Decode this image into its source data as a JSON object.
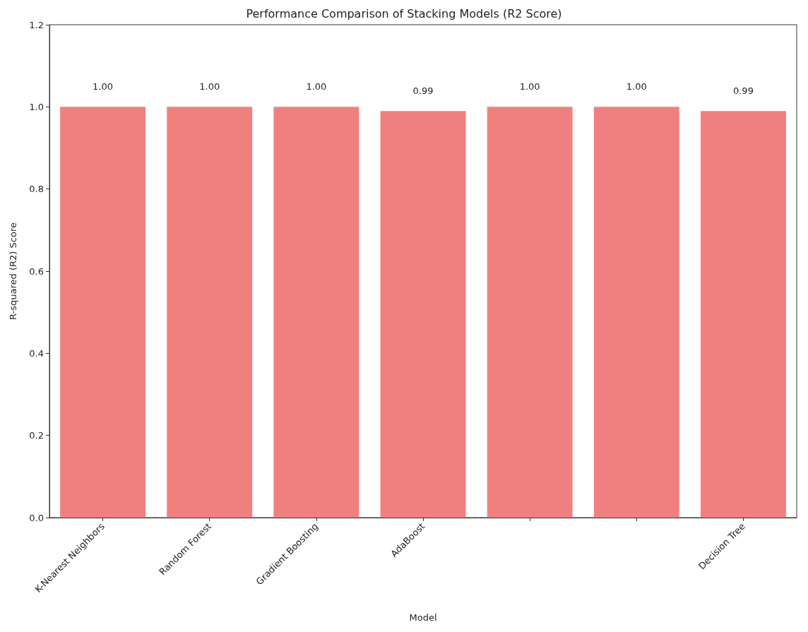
{
  "chart_data": {
    "type": "bar",
    "title": "Performance Comparison of Stacking Models (R2 Score)",
    "xlabel": "Model",
    "ylabel": "R-squared (R2) Score",
    "categories": [
      "K-Nearest Neighbors",
      "Random Forest",
      "Gradient Boosting",
      "AdaBoost",
      null,
      null,
      "Decision Tree"
    ],
    "values": [
      1.0,
      1.0,
      1.0,
      0.99,
      1.0,
      1.0,
      0.99
    ],
    "value_labels": [
      "1.00",
      "1.00",
      "1.00",
      "0.99",
      "1.00",
      "1.00",
      "0.99"
    ],
    "color": "#f08080",
    "ylim": [
      0,
      1.2
    ],
    "yticks": [
      {
        "value": 0,
        "label": "0.0"
      },
      {
        "value": 0.2,
        "label": "0.2"
      },
      {
        "value": 0.4,
        "label": "0.4"
      },
      {
        "value": 0.6,
        "label": "0.6"
      },
      {
        "value": 0.8,
        "label": "0.8"
      },
      {
        "value": 1.0,
        "label": "1.0"
      },
      {
        "value": 1.2,
        "label": "1.2"
      }
    ],
    "grid": false
  }
}
